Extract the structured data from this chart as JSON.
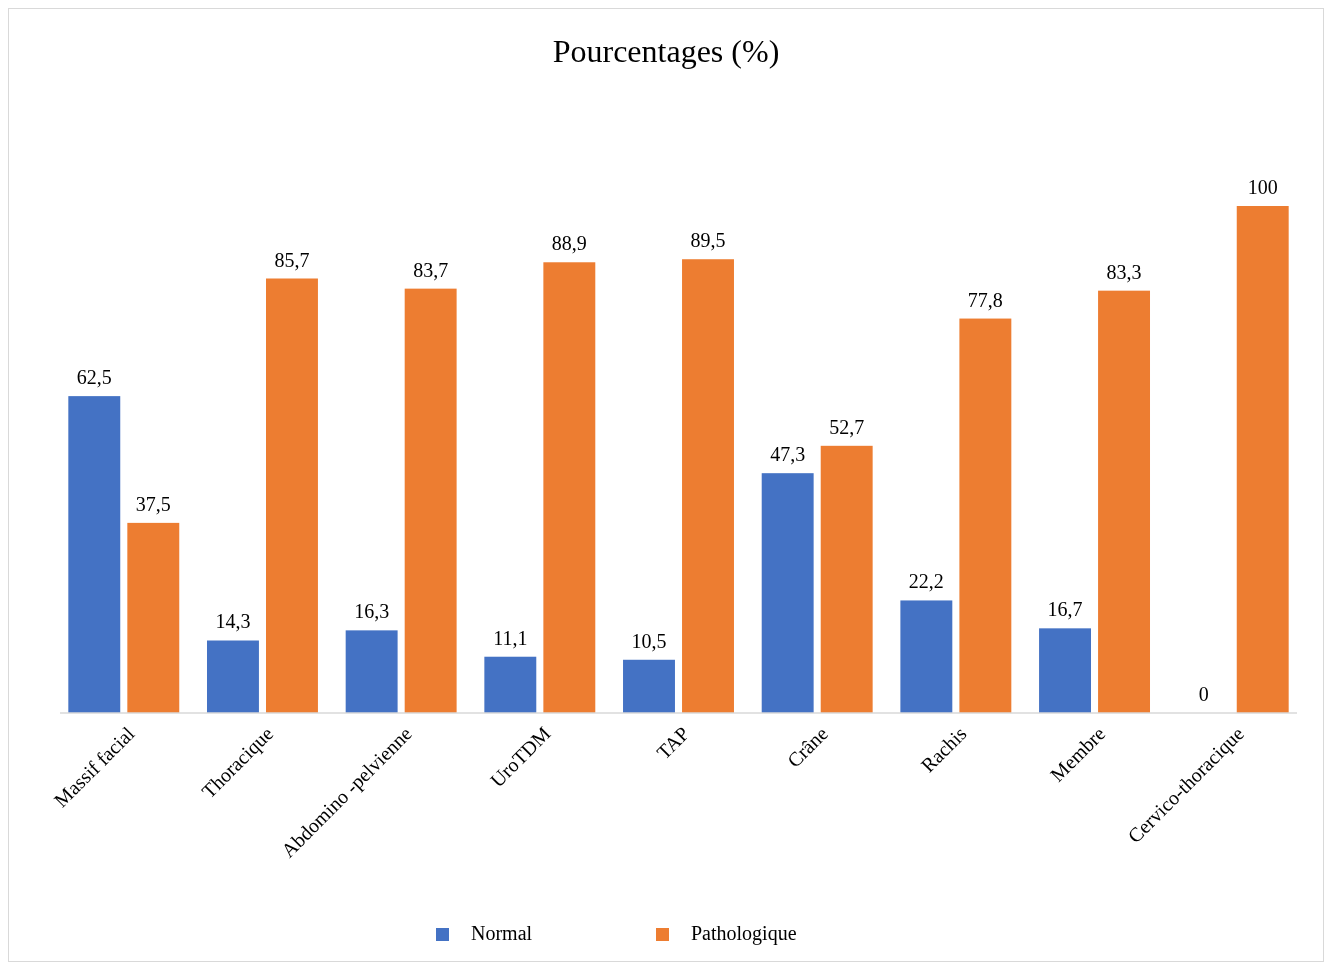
{
  "chart_data": {
    "type": "bar",
    "title": "Pourcentages (%)",
    "categories": [
      "Massif facial",
      "Thoracique",
      "Abdomino -pelvienne",
      "UroTDM",
      "TAP",
      "Crâne",
      "Rachis",
      "Membre",
      "Cervico-thoracique"
    ],
    "series": [
      {
        "name": "Normal",
        "color": "#4472c4",
        "values": [
          62.5,
          14.3,
          16.3,
          11.1,
          10.5,
          47.3,
          22.2,
          16.7,
          0
        ],
        "value_labels": [
          "62,5",
          "14,3",
          "16,3",
          "11,1",
          "10,5",
          "47,3",
          "22,2",
          "16,7",
          "0"
        ]
      },
      {
        "name": "Pathologique",
        "color": "#ed7d31",
        "values": [
          37.5,
          85.7,
          83.7,
          88.9,
          89.5,
          52.7,
          77.8,
          83.3,
          100
        ],
        "value_labels": [
          "37,5",
          "85,7",
          "83,7",
          "88,9",
          "89,5",
          "52,7",
          "77,8",
          "83,3",
          "100"
        ]
      }
    ],
    "legend": "bottom"
  }
}
